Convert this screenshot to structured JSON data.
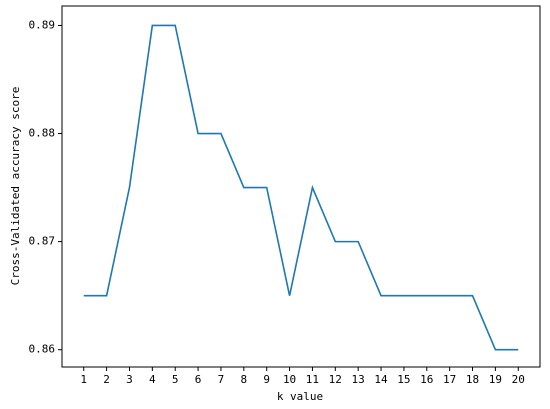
{
  "chart_data": {
    "type": "line",
    "x_label": "k value",
    "y_label": "Cross-Validated accuracy score",
    "x": [
      1,
      2,
      3,
      4,
      5,
      6,
      7,
      8,
      9,
      10,
      11,
      12,
      13,
      14,
      15,
      16,
      17,
      18,
      19,
      20
    ],
    "series": [
      {
        "color": "#1f77b4",
        "values": [
          0.865,
          0.865,
          0.875,
          0.89,
          0.89,
          0.88,
          0.88,
          0.875,
          0.875,
          0.865,
          0.875,
          0.87,
          0.87,
          0.865,
          0.865,
          0.865,
          0.865,
          0.865,
          0.86,
          0.86
        ]
      }
    ],
    "xlim": [
      0.05,
      20.95
    ],
    "ylim": [
      0.8584,
      0.8918
    ],
    "xticks": [
      1,
      2,
      3,
      4,
      5,
      6,
      7,
      8,
      9,
      10,
      11,
      12,
      13,
      14,
      15,
      16,
      17,
      18,
      19,
      20
    ],
    "yticks": [
      0.86,
      0.87,
      0.88,
      0.89
    ]
  }
}
